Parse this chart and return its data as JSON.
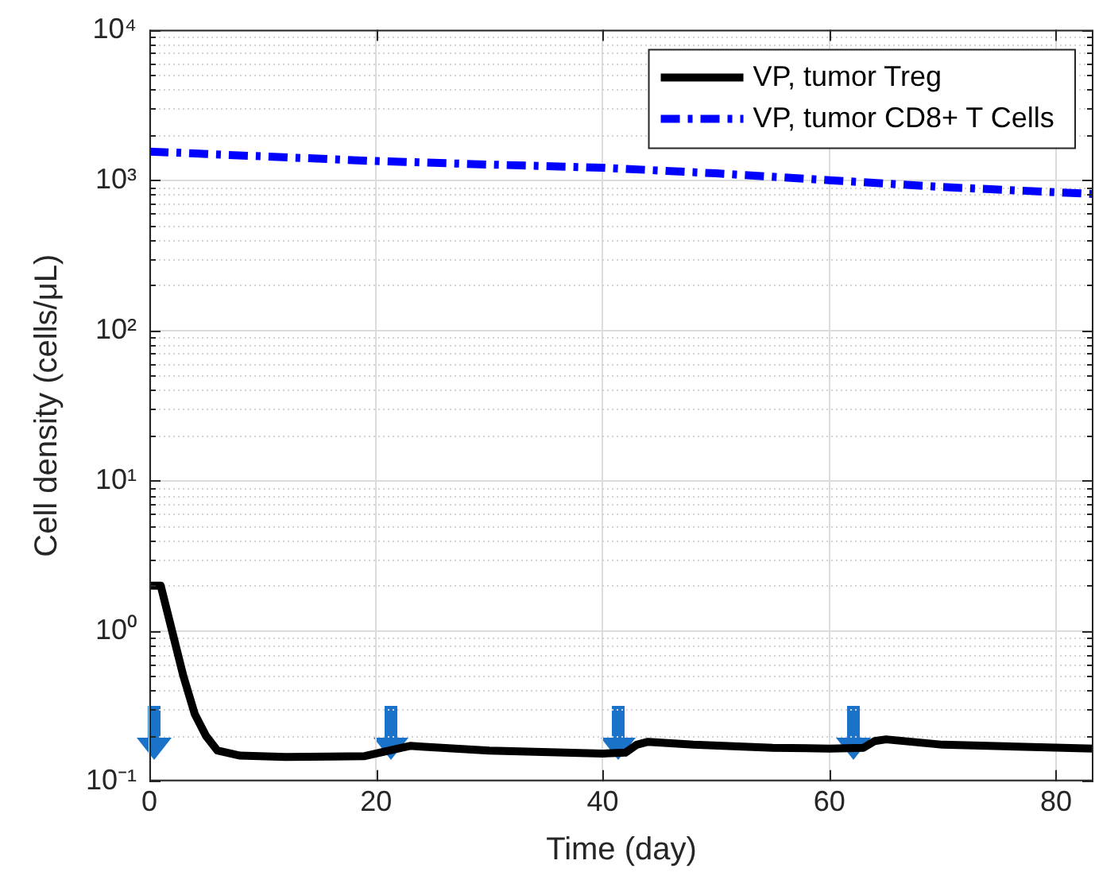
{
  "chart_data": {
    "type": "line",
    "xlabel": "Time (day)",
    "ylabel": "Cell density (cells/μL)",
    "log": "y",
    "grid": true,
    "legend": "top right",
    "xlim": [
      0,
      83.3
    ],
    "xticks": [
      0,
      20,
      40,
      60,
      80
    ],
    "ylim": [
      0.1,
      10000
    ],
    "yticks": [
      {
        "value": 0.1,
        "label": "10⁻¹"
      },
      {
        "value": 0.2,
        "label": null
      },
      {
        "value": 0.3,
        "label": null
      },
      {
        "value": 0.4,
        "label": null
      },
      {
        "value": 0.5,
        "label": null
      },
      {
        "value": 0.6,
        "label": null
      },
      {
        "value": 0.7,
        "label": null
      },
      {
        "value": 0.8,
        "label": null
      },
      {
        "value": 0.9,
        "label": null
      },
      {
        "value": 1,
        "label": "10⁰"
      },
      {
        "value": 2,
        "label": null
      },
      {
        "value": 3,
        "label": null
      },
      {
        "value": 4,
        "label": null
      },
      {
        "value": 5,
        "label": null
      },
      {
        "value": 6,
        "label": null
      },
      {
        "value": 7,
        "label": null
      },
      {
        "value": 8,
        "label": null
      },
      {
        "value": 9,
        "label": null
      },
      {
        "value": 10,
        "label": "10¹"
      },
      {
        "value": 20,
        "label": null
      },
      {
        "value": 30,
        "label": null
      },
      {
        "value": 40,
        "label": null
      },
      {
        "value": 50,
        "label": null
      },
      {
        "value": 60,
        "label": null
      },
      {
        "value": 70,
        "label": null
      },
      {
        "value": 80,
        "label": null
      },
      {
        "value": 90,
        "label": null
      },
      {
        "value": 100,
        "label": "10²"
      },
      {
        "value": 200,
        "label": null
      },
      {
        "value": 300,
        "label": null
      },
      {
        "value": 400,
        "label": null
      },
      {
        "value": 500,
        "label": null
      },
      {
        "value": 600,
        "label": null
      },
      {
        "value": 700,
        "label": null
      },
      {
        "value": 800,
        "label": null
      },
      {
        "value": 900,
        "label": null
      },
      {
        "value": 1000,
        "label": "10³"
      },
      {
        "value": 2000,
        "label": null
      },
      {
        "value": 3000,
        "label": null
      },
      {
        "value": 4000,
        "label": null
      },
      {
        "value": 5000,
        "label": null
      },
      {
        "value": 6000,
        "label": null
      },
      {
        "value": 7000,
        "label": null
      },
      {
        "value": 8000,
        "label": null
      },
      {
        "value": 9000,
        "label": null
      },
      {
        "value": 10000,
        "label": "10⁴"
      }
    ],
    "series": [
      {
        "name": "VP, tumor Treg",
        "color": "#000000",
        "line_style": "solid",
        "x": [
          0,
          1,
          2,
          3,
          4,
          5,
          6,
          8,
          12,
          16,
          19,
          23,
          24,
          30,
          40,
          42,
          43,
          44,
          48,
          55,
          60,
          63,
          64,
          65,
          70,
          83.3
        ],
        "values": [
          2,
          2,
          1,
          0.5,
          0.28,
          0.2,
          0.16,
          0.148,
          0.145,
          0.146,
          0.147,
          0.172,
          0.17,
          0.16,
          0.153,
          0.155,
          0.175,
          0.183,
          0.175,
          0.167,
          0.165,
          0.167,
          0.185,
          0.19,
          0.175,
          0.165
        ]
      },
      {
        "name": "VP, tumor CD8+ T Cells",
        "color": "#0000ff",
        "line_style": "dashdot",
        "x": [
          0,
          10,
          20,
          30,
          40,
          50,
          60,
          70,
          83.3
        ],
        "values": [
          1550,
          1440,
          1340,
          1270,
          1210,
          1110,
          1000,
          900,
          810
        ]
      }
    ]
  }
}
